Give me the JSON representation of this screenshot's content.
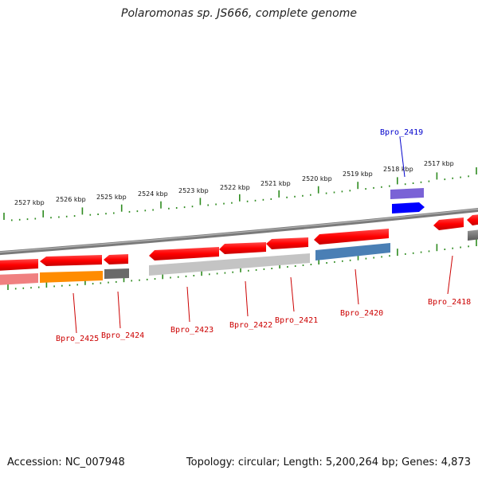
{
  "title": "Polaromonas sp. JS666, complete genome",
  "footer": {
    "accession": "Accession: NC_007948",
    "topology": "Topology: circular; Length: 5,200,264 bp; Genes: 4,873"
  },
  "scale_labels": [
    "2527 kbp",
    "2526 kbp",
    "2525 kbp",
    "2524 kbp",
    "2523 kbp",
    "2522 kbp",
    "2521 kbp",
    "2520 kbp",
    "2519 kbp",
    "2518 kbp",
    "2517 kbp"
  ],
  "gene_labels": [
    "Bpro_2419",
    "Bpro_2425",
    "Bpro_2424",
    "Bpro_2423",
    "Bpro_2422",
    "Bpro_2421",
    "Bpro_2420",
    "Bpro_2418"
  ],
  "colors": {
    "backbone": "#7f7f7f",
    "tick": "#2e8b1f",
    "cds": "#ff0000",
    "label_red": "#cc0000",
    "label_blue": "#0000cc",
    "orange": "#ff8c00",
    "steelblue": "#4a7fb5",
    "lightgray": "#c8c8c8",
    "darkgray": "#666666",
    "pink": "#f08080",
    "violet": "#7a62d6",
    "blue": "#0000ff"
  }
}
